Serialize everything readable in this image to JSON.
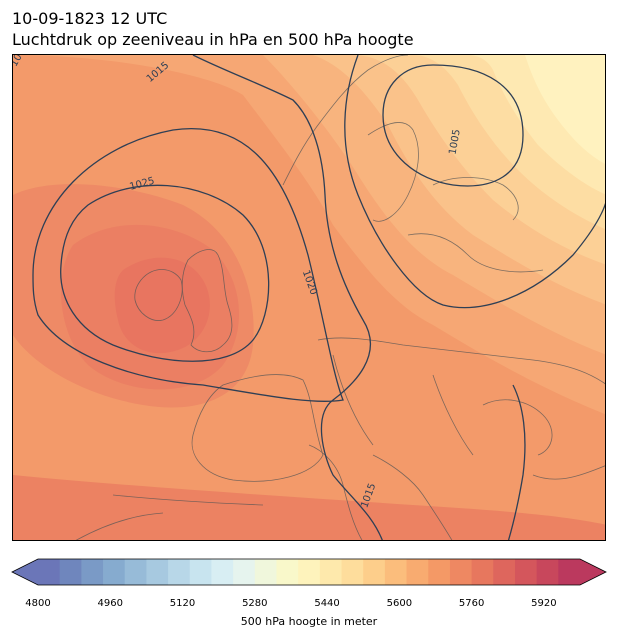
{
  "header": {
    "datetime": "10-09-1823 12 UTC",
    "subtitle": "Luchtdruk op zeeniveau in hPa en 500 hPa hoogte"
  },
  "map": {
    "region": "Europe",
    "isobar_labels": [
      "1015",
      "1025",
      "1005",
      "1020",
      "1015",
      "10"
    ],
    "land_outline_color": "#555555",
    "isobar_color": "#2e3f55"
  },
  "colorbar": {
    "label": "500 hPa hoogte in meter",
    "ticks": [
      "4800",
      "4960",
      "5120",
      "5280",
      "5440",
      "5600",
      "5760",
      "5920"
    ],
    "range": [
      4800,
      6000
    ],
    "step": 40,
    "colors": [
      "#6b76b8",
      "#6f86bd",
      "#7a9ac6",
      "#86abcf",
      "#97bbd8",
      "#a7c9e0",
      "#b8d7e8",
      "#c8e4ef",
      "#d8eef3",
      "#e6f4ee",
      "#f0f7dc",
      "#f9f8ca",
      "#fef3bc",
      "#fee9ac",
      "#fedd9c",
      "#fdce8b",
      "#fbbd7c",
      "#f8ab70",
      "#f49966",
      "#ee8862",
      "#e7775e",
      "#de665d",
      "#d4565c",
      "#c8475c",
      "#bb395e"
    ]
  }
}
